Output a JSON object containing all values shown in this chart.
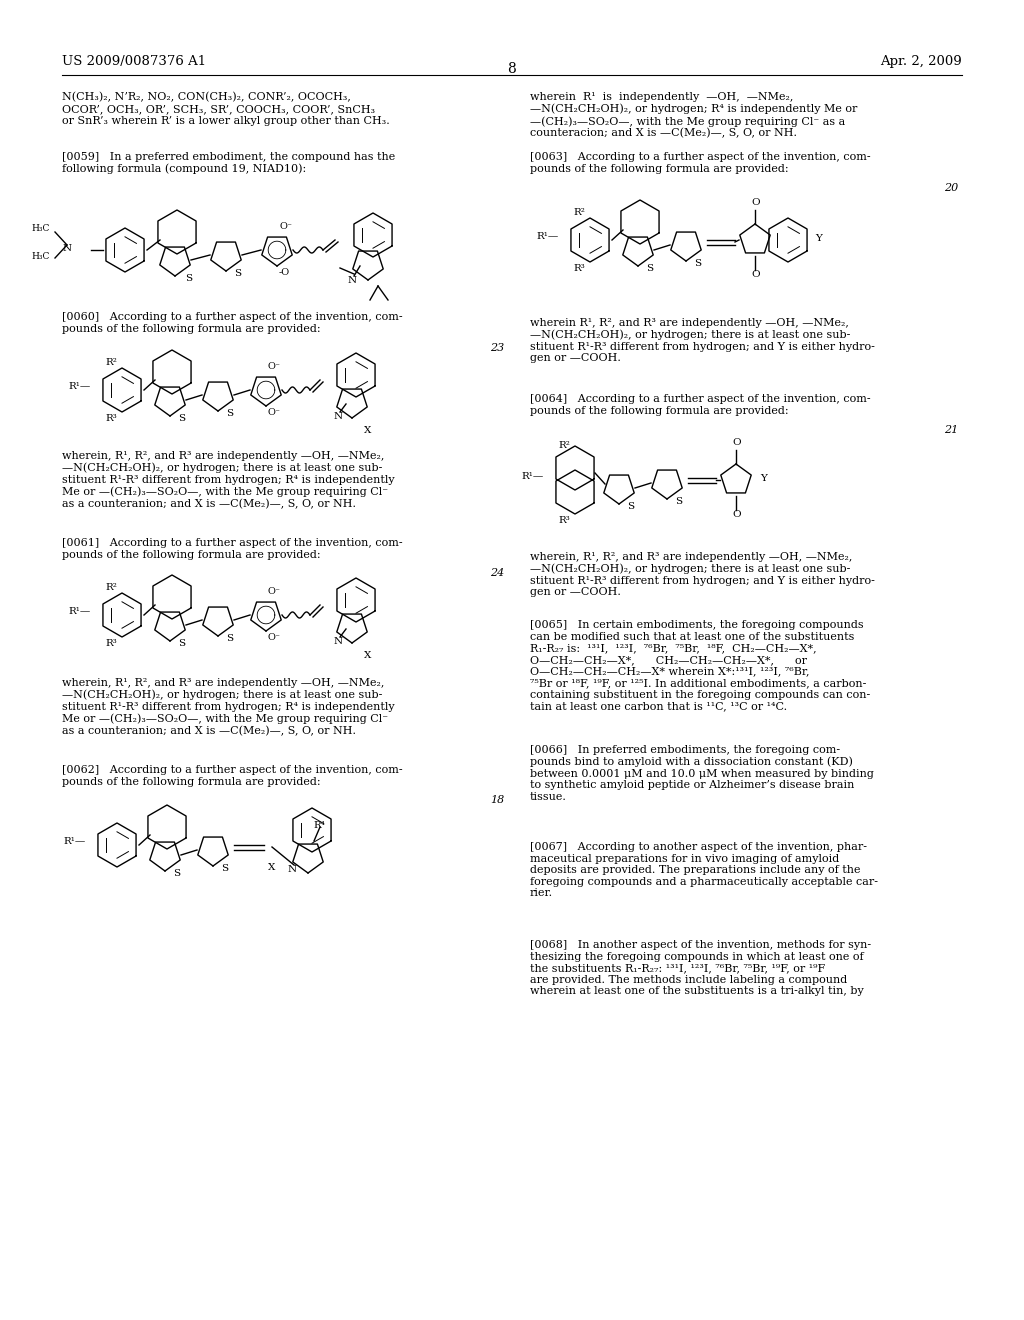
{
  "patent_number": "US 2009/0087376 A1",
  "date": "Apr. 2, 2009",
  "page_number": "8",
  "bg_color": "#ffffff",
  "text_color": "#000000",
  "header_fontsize": 10,
  "body_fontsize": 8,
  "top_left_text": "N(CH₃)₂, N’R₂, NO₂, CON(CH₃)₂, CONR’₂, OCOCH₃,\nOCOR’, OCH₃, OR’, SCH₃, SR’, COOCH₃, COOR’, SnCH₃\nor SnR’₃ wherein R’ is a lower alkyl group other than CH₃.",
  "top_right_text": "wherein  R¹  is  independently  —OH,  —NMe₂,\n—N(CH₂CH₂OH)₂, or hydrogen; R⁴ is independently Me or\n—(CH₂)₃—SO₂O—, with the Me group requiring Cl⁻ as a\ncounteracion; and X is —C(Me₂)—, S, O, or NH.",
  "p0059": "[0059]   In a preferred embodiment, the compound has the\nfollowing formula (compound 19, NIAD10):",
  "p0060": "[0060]   According to a further aspect of the invention, com-\npounds of the following formula are provided:",
  "p0061_where": "wherein, R¹, R², and R³ are independently —OH, —NMe₂,\n—N(CH₂CH₂OH)₂, or hydrogen; there is at least one sub-\nstituent R¹-R³ different from hydrogen; R⁴ is independently\nMe or —(CH₂)₃—SO₂O—, with the Me group requiring Cl⁻\nas a counteranion; and X is —C(Me₂)—, S, O, or NH.",
  "p0061": "[0061]   According to a further aspect of the invention, com-\npounds of the following formula are provided:",
  "p0062_where": "wherein, R¹, R², and R³ are independently —OH, —NMe₂,\n—N(CH₂CH₂OH)₂, or hydrogen; there is at least one sub-\nstituent R¹-R³ different from hydrogen; R⁴ is independently\nMe or —(CH₂)₃—SO₂O—, with the Me group requiring Cl⁻\nas a counteranion; and X is —C(Me₂)—, S, O, or NH.",
  "p0062": "[0062]   According to a further aspect of the invention, com-\npounds of the following formula are provided:",
  "p0063": "[0063]   According to a further aspect of the invention, com-\npounds of the following formula are provided:",
  "p0063_where": "wherein R¹, R², and R³ are independently —OH, —NMe₂,\n—N(CH₂CH₂OH)₂, or hydrogen; there is at least one sub-\nstituent R¹-R³ different from hydrogen; and Y is either hydro-\ngen or —COOH.",
  "p0064": "[0064]   According to a further aspect of the invention, com-\npounds of the following formula are provided:",
  "p0064_where": "wherein, R¹, R², and R³ are independently —OH, —NMe₂,\n—N(CH₂CH₂OH)₂, or hydrogen; there is at least one sub-\nstituent R¹-R³ different from hydrogen; and Y is either hydro-\ngen or —COOH.",
  "p0065": "[0065]   In certain embodiments, the foregoing compounds\ncan be modified such that at least one of the substituents\nR₁-R₂₇ is:  ¹³¹I,  ¹²³I,  ⁷⁶Br,  ⁷⁵Br,  ¹⁸F,  CH₂—CH₂—X*,\nO—CH₂—CH₂—X*,      CH₂—CH₂—CH₂—X*,      or\nO—CH₂—CH₂—CH₂—X* wherein X*:¹³¹I, ¹²³I, ⁷⁶Br,\n⁷⁵Br or ¹⁸F, ¹⁹F, or ¹²⁵I. In additional embodiments, a carbon-\ncontaining substituent in the foregoing compounds can con-\ntain at least one carbon that is ¹¹C, ¹³C or ¹⁴C.",
  "p0066": "[0066]   In preferred embodiments, the foregoing com-\npounds bind to amyloid with a dissociation constant (KD)\nbetween 0.0001 μM and 10.0 μM when measured by binding\nto synthetic amyloid peptide or Alzheimer’s disease brain\ntissue.",
  "p0067": "[0067]   According to another aspect of the invention, phar-\nmaceutical preparations for in vivo imaging of amyloid\ndeposits are provided. The preparations include any of the\nforegoing compounds and a pharmaceutically acceptable car-\nrier.",
  "p0068": "[0068]   In another aspect of the invention, methods for syn-\nthesizing the foregoing compounds in which at least one of\nthe substituents R₁-R₂₇: ¹³¹I, ¹²³I, ⁷⁶Br, ⁷⁵Br, ¹⁹F, or ¹⁹F\nare provided. The methods include labeling a compound\nwherein at least one of the substituents is a tri-alkyl tin, by"
}
